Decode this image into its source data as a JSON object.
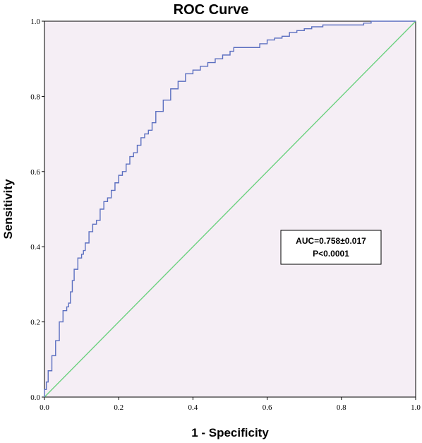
{
  "chart_data": {
    "type": "line",
    "title": "ROC Curve",
    "xlabel": "1 - Specificity",
    "ylabel": "Sensitivity",
    "xlim": [
      0,
      1
    ],
    "ylim": [
      0,
      1
    ],
    "x_ticks": [
      "0.0",
      "0.2",
      "0.4",
      "0.6",
      "0.8",
      "1.0"
    ],
    "y_ticks": [
      "0.0",
      "0.2",
      "0.4",
      "0.6",
      "0.8",
      "1.0"
    ],
    "grid": false,
    "plot_background": "#f5eef5",
    "annotation": {
      "lines": [
        "AUC=0.758±0.017",
        "P<0.0001"
      ],
      "placement": "right-middle"
    },
    "series": [
      {
        "color": "#5b6fc0",
        "x": [
          0.0,
          0.005,
          0.01,
          0.02,
          0.03,
          0.04,
          0.05,
          0.06,
          0.065,
          0.07,
          0.075,
          0.08,
          0.09,
          0.1,
          0.105,
          0.11,
          0.12,
          0.13,
          0.14,
          0.15,
          0.16,
          0.17,
          0.18,
          0.19,
          0.2,
          0.21,
          0.22,
          0.23,
          0.24,
          0.25,
          0.26,
          0.27,
          0.28,
          0.29,
          0.3,
          0.32,
          0.34,
          0.36,
          0.38,
          0.4,
          0.42,
          0.44,
          0.46,
          0.48,
          0.5,
          0.51,
          0.52,
          0.53,
          0.55,
          0.58,
          0.6,
          0.62,
          0.64,
          0.66,
          0.68,
          0.7,
          0.72,
          0.75,
          0.78,
          0.8,
          0.83,
          0.86,
          0.88,
          0.9,
          0.93,
          0.96,
          0.98,
          1.0
        ],
        "y": [
          0.0,
          0.02,
          0.04,
          0.07,
          0.11,
          0.15,
          0.2,
          0.23,
          0.24,
          0.25,
          0.28,
          0.31,
          0.34,
          0.37,
          0.38,
          0.39,
          0.41,
          0.44,
          0.46,
          0.47,
          0.5,
          0.52,
          0.53,
          0.55,
          0.57,
          0.59,
          0.6,
          0.62,
          0.64,
          0.65,
          0.67,
          0.69,
          0.7,
          0.71,
          0.73,
          0.76,
          0.79,
          0.82,
          0.84,
          0.86,
          0.87,
          0.88,
          0.89,
          0.9,
          0.91,
          0.92,
          0.93,
          0.93,
          0.93,
          0.93,
          0.94,
          0.95,
          0.955,
          0.96,
          0.97,
          0.975,
          0.98,
          0.985,
          0.99,
          0.99,
          0.99,
          0.99,
          0.995,
          1.0,
          1.0,
          1.0,
          1.0,
          1.0
        ]
      },
      {
        "color": "#6cd17f",
        "x": [
          0,
          1
        ],
        "y": [
          0,
          1
        ]
      }
    ]
  }
}
